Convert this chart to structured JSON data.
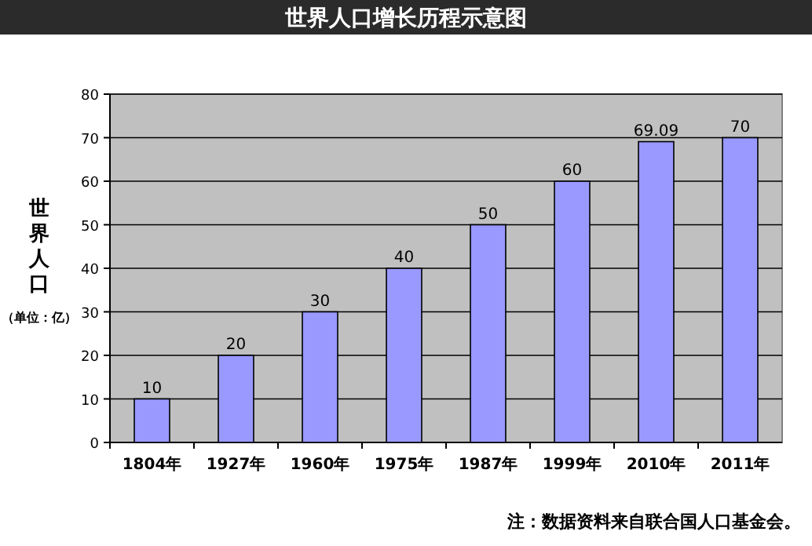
{
  "chart_data": {
    "type": "bar",
    "title": "世界人口增长历程示意图",
    "ylabel": "世界人口",
    "categories": [
      "1804年",
      "1927年",
      "1960年",
      "1975年",
      "1987年",
      "1999年",
      "2010年",
      "2011年"
    ],
    "values": [
      10,
      20,
      30,
      40,
      50,
      60,
      69.09,
      70
    ],
    "color": "#9999ff",
    "ylim": [
      0,
      80
    ],
    "yticks": [
      0,
      10,
      20,
      30,
      40,
      50,
      60,
      70,
      80
    ],
    "grid": "y",
    "data_labels": true,
    "annotations": [
      "（单位：亿）",
      "注：数据资料来自联合国人口基金会。"
    ]
  }
}
